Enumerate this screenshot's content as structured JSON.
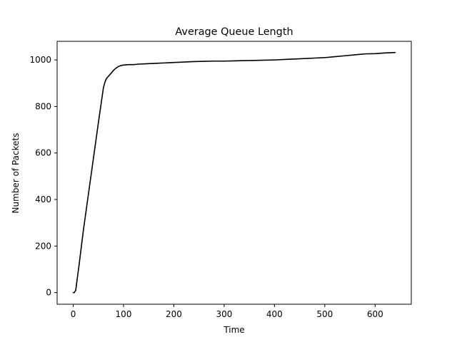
{
  "chart_data": {
    "type": "line",
    "title": "Average Queue Length",
    "xlabel": "Time",
    "ylabel": "Number of Packets",
    "xlim": [
      -32,
      672
    ],
    "ylim": [
      -50,
      1080
    ],
    "xticks": [
      0,
      100,
      200,
      300,
      400,
      500,
      600
    ],
    "yticks": [
      0,
      200,
      400,
      600,
      800,
      1000
    ],
    "grid": false,
    "series": [
      {
        "color": "#000000",
        "x": [
          0,
          2,
          5,
          8,
          12,
          20,
          30,
          40,
          50,
          60,
          63,
          66,
          70,
          75,
          80,
          85,
          90,
          95,
          100,
          110,
          120,
          130,
          140,
          150,
          160,
          170,
          180,
          190,
          200,
          220,
          240,
          260,
          280,
          300,
          320,
          340,
          360,
          380,
          400,
          420,
          440,
          460,
          480,
          500,
          520,
          540,
          560,
          580,
          600,
          620,
          640
        ],
        "y": [
          0,
          0,
          10,
          60,
          125,
          265,
          420,
          575,
          730,
          880,
          905,
          920,
          930,
          942,
          955,
          965,
          972,
          976,
          978,
          980,
          980,
          982,
          983,
          984,
          985,
          986,
          987,
          988,
          989,
          991,
          993,
          994,
          995,
          995,
          996,
          997,
          998,
          999,
          1000,
          1002,
          1004,
          1006,
          1008,
          1010,
          1014,
          1018,
          1022,
          1026,
          1027,
          1030,
          1032
        ]
      }
    ]
  }
}
